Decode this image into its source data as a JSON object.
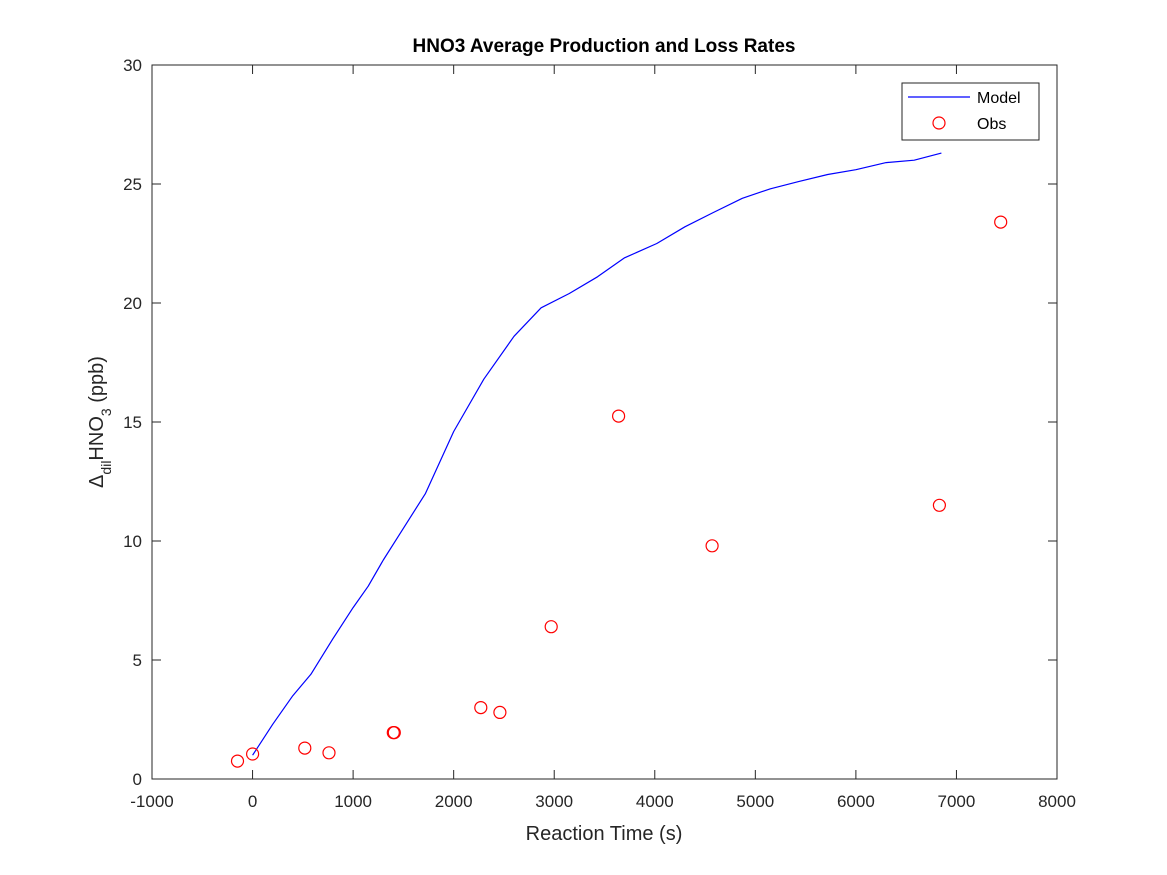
{
  "chart_data": {
    "type": "line",
    "title": "HNO3 Average Production and Loss Rates",
    "xlabel": "Reaction Time (s)",
    "ylabel": {
      "prefix": "Δ",
      "prefix_sub": "dil",
      "main": "HNO",
      "main_sub": "3",
      "suffix": " (ppb)"
    },
    "xlim": [
      -1000,
      8000
    ],
    "ylim": [
      0,
      30
    ],
    "xticks": [
      -1000,
      0,
      1000,
      2000,
      3000,
      4000,
      5000,
      6000,
      7000,
      8000
    ],
    "yticks": [
      0,
      5,
      10,
      15,
      20,
      25,
      30
    ],
    "grid": false,
    "legend_position": "top-right",
    "series": [
      {
        "name": "Model",
        "style": "line",
        "color": "#0000ff",
        "x": [
          0,
          200,
          400,
          580,
          800,
          1000,
          1150,
          1300,
          1450,
          1720,
          2000,
          2300,
          2600,
          2870,
          3150,
          3430,
          3700,
          4020,
          4300,
          4580,
          4870,
          5150,
          5430,
          5720,
          6000,
          6300,
          6580,
          6850
        ],
        "y": [
          1.0,
          2.3,
          3.5,
          4.4,
          5.9,
          7.2,
          8.1,
          9.2,
          10.2,
          12.0,
          14.6,
          16.8,
          18.6,
          19.8,
          20.4,
          21.1,
          21.9,
          22.5,
          23.2,
          23.8,
          24.4,
          24.8,
          25.1,
          25.4,
          25.6,
          25.9,
          26.0,
          26.3
        ]
      },
      {
        "name": "Obs",
        "style": "marker",
        "color": "#ff0000",
        "x": [
          -150,
          0,
          520,
          760,
          1400,
          1410,
          2270,
          2460,
          2970,
          3640,
          4570,
          6830,
          7440
        ],
        "y": [
          0.75,
          1.05,
          1.3,
          1.1,
          1.95,
          1.95,
          3.0,
          2.8,
          6.4,
          15.25,
          9.8,
          11.5,
          23.4
        ]
      }
    ]
  }
}
